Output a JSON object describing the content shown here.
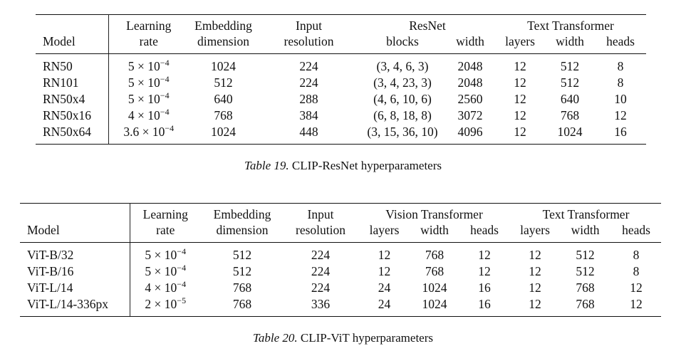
{
  "table19": {
    "header_top": [
      "Learning",
      "Embedding",
      "Input",
      "ResNet",
      "Text Transformer"
    ],
    "header_bottom": [
      "Model",
      "rate",
      "dimension",
      "resolution",
      "blocks",
      "width",
      "layers",
      "width",
      "heads"
    ],
    "rows": [
      [
        "RN50",
        {
          "base": "5 × 10",
          "sup": "−4"
        },
        1024,
        224,
        "(3, 4, 6, 3)",
        2048,
        12,
        512,
        8
      ],
      [
        "RN101",
        {
          "base": "5 × 10",
          "sup": "−4"
        },
        512,
        224,
        "(3, 4, 23, 3)",
        2048,
        12,
        512,
        8
      ],
      [
        "RN50x4",
        {
          "base": "5 × 10",
          "sup": "−4"
        },
        640,
        288,
        "(4, 6, 10, 6)",
        2560,
        12,
        640,
        10
      ],
      [
        "RN50x16",
        {
          "base": "4 × 10",
          "sup": "−4"
        },
        768,
        384,
        "(6, 8, 18, 8)",
        3072,
        12,
        768,
        12
      ],
      [
        "RN50x64",
        {
          "base": "3.6 × 10",
          "sup": "−4"
        },
        1024,
        448,
        "(3, 15, 36, 10)",
        4096,
        12,
        1024,
        16
      ]
    ],
    "caption": {
      "label": "Table 19.",
      "text": "CLIP-ResNet hyperparameters"
    }
  },
  "table20": {
    "header_top": [
      "Learning",
      "Embedding",
      "Input",
      "Vision Transformer",
      "Text Transformer"
    ],
    "header_bottom": [
      "Model",
      "rate",
      "dimension",
      "resolution",
      "layers",
      "width",
      "heads",
      "layers",
      "width",
      "heads"
    ],
    "rows": [
      [
        "ViT-B/32",
        {
          "base": "5 × 10",
          "sup": "−4"
        },
        512,
        224,
        12,
        768,
        12,
        12,
        512,
        8
      ],
      [
        "ViT-B/16",
        {
          "base": "5 × 10",
          "sup": "−4"
        },
        512,
        224,
        12,
        768,
        12,
        12,
        512,
        8
      ],
      [
        "ViT-L/14",
        {
          "base": "4 × 10",
          "sup": "−4"
        },
        768,
        224,
        24,
        1024,
        16,
        12,
        768,
        12
      ],
      [
        "ViT-L/14-336px",
        {
          "base": "2 × 10",
          "sup": "−5"
        },
        768,
        336,
        24,
        1024,
        16,
        12,
        768,
        12
      ]
    ],
    "caption": {
      "label": "Table 20.",
      "text": "CLIP-ViT hyperparameters"
    }
  }
}
